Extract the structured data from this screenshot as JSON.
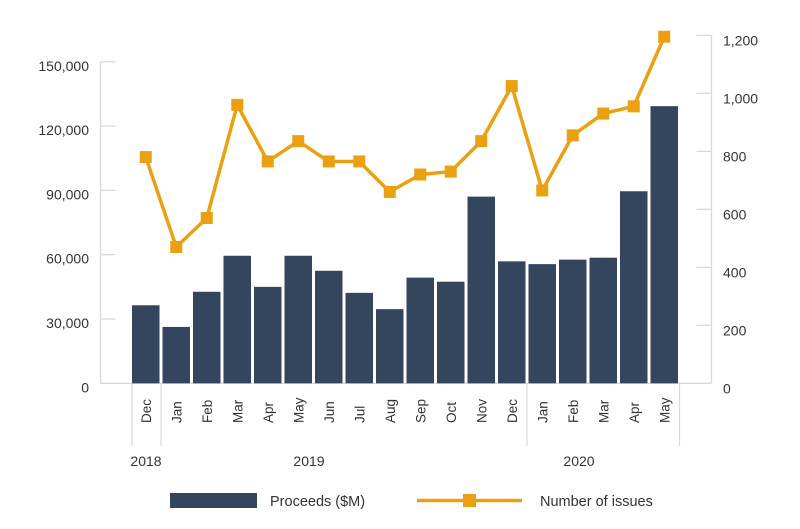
{
  "chart_data": {
    "type": "bar+line",
    "title": "",
    "categories": [
      "Dec",
      "Jan",
      "Feb",
      "Mar",
      "Apr",
      "May",
      "Jun",
      "Jul",
      "Aug",
      "Sep",
      "Oct",
      "Nov",
      "Dec",
      "Jan",
      "Feb",
      "Mar",
      "Apr",
      "May"
    ],
    "year_groups": [
      {
        "label": "2018",
        "start": 0,
        "end": 0
      },
      {
        "label": "2019",
        "start": 1,
        "end": 12
      },
      {
        "label": "2020",
        "start": 13,
        "end": 17
      }
    ],
    "series": [
      {
        "name": "Proceeds ($M)",
        "type": "bar",
        "axis": "left",
        "color": "#33465e",
        "values": [
          36400,
          26300,
          42700,
          59500,
          45000,
          59500,
          52500,
          42200,
          34600,
          49300,
          47400,
          87100,
          56900,
          55600,
          57700,
          58600,
          89600,
          129300
        ]
      },
      {
        "name": "Number of issues",
        "type": "line",
        "axis": "right",
        "color": "#eaa010",
        "marker": "square",
        "values": [
          780,
          470,
          570,
          960,
          765,
          835,
          765,
          765,
          660,
          720,
          730,
          835,
          1025,
          665,
          855,
          930,
          955,
          1195
        ]
      }
    ],
    "y_left": {
      "ylim": [
        0,
        150000
      ],
      "ticks": [
        0,
        30000,
        60000,
        90000,
        120000,
        150000
      ],
      "tick_labels": [
        "0",
        "30,000",
        "60,000",
        "90,000",
        "120,000",
        "150,000"
      ]
    },
    "y_right": {
      "ylim": [
        0,
        1200
      ],
      "ticks": [
        0,
        200,
        400,
        600,
        800,
        1000,
        1200
      ],
      "tick_labels": [
        "0",
        "200",
        "400",
        "600",
        "800",
        "1,000",
        "1,200"
      ]
    },
    "xlabel": "",
    "ylabel": "",
    "grid": false,
    "legend": {
      "position": "bottom",
      "entries": [
        "Proceeds ($M)",
        "Number of issues"
      ]
    }
  }
}
